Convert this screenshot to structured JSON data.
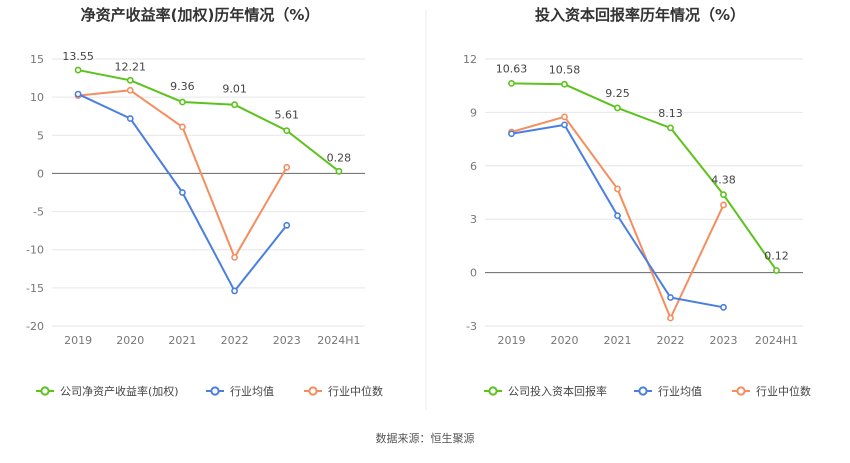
{
  "source": "数据来源：恒生聚源",
  "chart_data": [
    {
      "type": "line",
      "title": "净资产收益率(加权)历年情况（%）",
      "categories": [
        "2019",
        "2020",
        "2021",
        "2022",
        "2023",
        "2024H1"
      ],
      "y_ticks": [
        15,
        10,
        5,
        0,
        -5,
        -10,
        -15,
        -20
      ],
      "ylim": [
        -20,
        15
      ],
      "grid": true,
      "legend_position": "bottom",
      "series": [
        {
          "name": "公司净资产收益率(加权)",
          "color": "#5cc21c",
          "values": [
            13.55,
            12.21,
            9.36,
            9.01,
            5.61,
            0.28
          ],
          "labels": [
            "13.55",
            "12.21",
            "9.36",
            "9.01",
            "5.61",
            "0.28"
          ]
        },
        {
          "name": "行业均值",
          "color": "#4a7fe0",
          "values": [
            10.4,
            7.2,
            -2.5,
            -15.4,
            -6.8,
            null
          ]
        },
        {
          "name": "行业中位数",
          "color": "#f58d5f",
          "values": [
            10.2,
            10.9,
            6.1,
            -11.0,
            0.8,
            null
          ]
        }
      ]
    },
    {
      "type": "line",
      "title": "投入资本回报率历年情况（%）",
      "categories": [
        "2019",
        "2020",
        "2021",
        "2022",
        "2023",
        "2024H1"
      ],
      "y_ticks": [
        12,
        9,
        6,
        3,
        0,
        -3
      ],
      "ylim": [
        -3,
        12
      ],
      "grid": true,
      "legend_position": "bottom",
      "series": [
        {
          "name": "公司投入资本回报率",
          "color": "#5cc21c",
          "values": [
            10.63,
            10.58,
            9.25,
            8.13,
            4.38,
            0.12
          ],
          "labels": [
            "10.63",
            "10.58",
            "9.25",
            "8.13",
            "4.38",
            "0.12"
          ]
        },
        {
          "name": "行业均值",
          "color": "#4a7fe0",
          "values": [
            7.8,
            8.3,
            3.2,
            -1.4,
            -1.95,
            null
          ]
        },
        {
          "name": "行业中位数",
          "color": "#f58d5f",
          "values": [
            7.9,
            8.75,
            4.7,
            -2.55,
            3.8,
            null
          ]
        }
      ]
    }
  ]
}
